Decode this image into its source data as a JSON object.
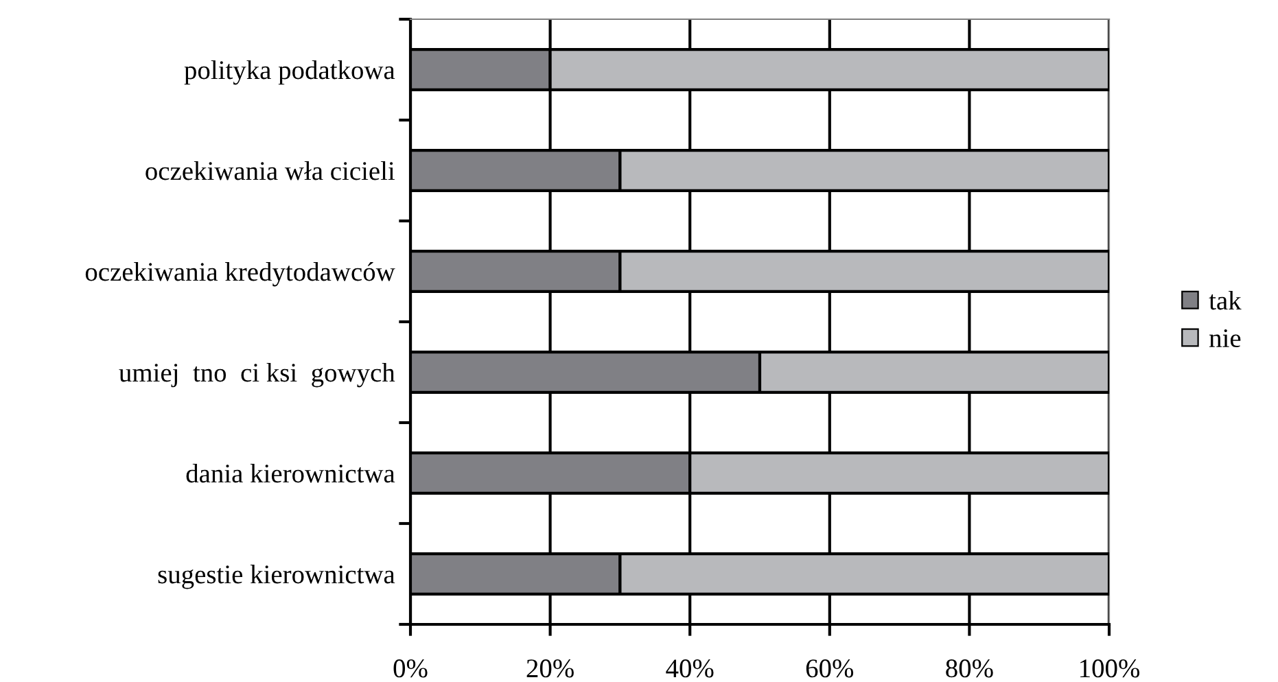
{
  "chart_data": {
    "type": "bar",
    "orientation": "horizontal",
    "stacked": true,
    "categories": [
      "polityka podatkowa",
      "oczekiwania wła cicieli",
      "oczekiwania kredytodawców",
      "umiej  tno  ci ksi  gowych",
      "dania kierownictwa",
      "sugestie kierownictwa"
    ],
    "series": [
      {
        "name": "tak",
        "color": "#808085",
        "values": [
          20,
          30,
          30,
          50,
          40,
          30
        ]
      },
      {
        "name": "nie",
        "color": "#b8b9bc",
        "values": [
          80,
          70,
          70,
          50,
          60,
          70
        ]
      }
    ],
    "xlim": [
      0,
      100
    ],
    "xticks": [
      {
        "value": 0,
        "label": "0%"
      },
      {
        "value": 20,
        "label": "20%"
      },
      {
        "value": 40,
        "label": "40%"
      },
      {
        "value": 60,
        "label": "60%"
      },
      {
        "value": 80,
        "label": "80%"
      },
      {
        "value": 100,
        "label": "100%"
      }
    ],
    "grid": "x",
    "legend": "right"
  }
}
